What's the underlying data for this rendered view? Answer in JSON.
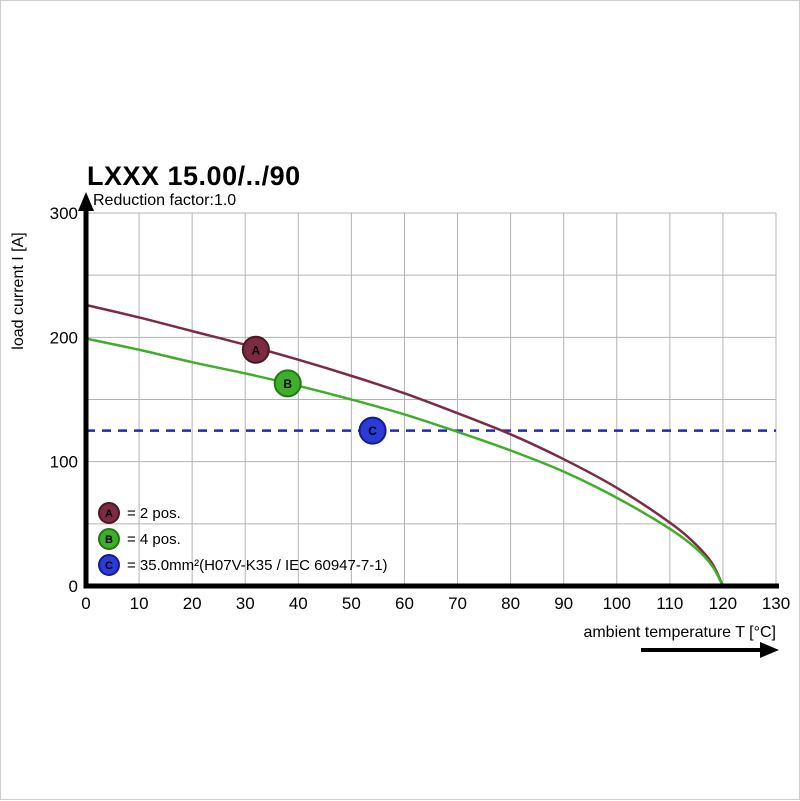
{
  "title": "LXXX 15.00/../90",
  "subtitle": "Reduction factor:1.0",
  "chart_data": {
    "type": "line",
    "title": "LXXX 15.00/../90",
    "subtitle": "Reduction factor:1.0",
    "xlabel": "ambient temperature T [°C]",
    "ylabel": "load current I [A]",
    "xlim": [
      0,
      130
    ],
    "ylim": [
      0,
      300
    ],
    "x_ticks": [
      0,
      10,
      20,
      30,
      40,
      50,
      60,
      70,
      80,
      90,
      100,
      110,
      120,
      130
    ],
    "y_ticks": [
      0,
      100,
      200,
      300
    ],
    "y_grid_step": 50,
    "grid": true,
    "grid_color": "#b3b3b3",
    "axis_color": "#000000",
    "series": [
      {
        "id": "A",
        "name": "2 pos.",
        "color": "#7d2b42",
        "marker_stroke": "#4a1724",
        "marker": {
          "x": 32,
          "y": 190
        },
        "points": [
          [
            0,
            226
          ],
          [
            10,
            216
          ],
          [
            20,
            205
          ],
          [
            30,
            194
          ],
          [
            40,
            182
          ],
          [
            50,
            169
          ],
          [
            60,
            155
          ],
          [
            70,
            139
          ],
          [
            80,
            122
          ],
          [
            90,
            102
          ],
          [
            100,
            79
          ],
          [
            110,
            51
          ],
          [
            115,
            33
          ],
          [
            118,
            18
          ],
          [
            120,
            0
          ]
        ]
      },
      {
        "id": "B",
        "name": "4 pos.",
        "color": "#3fae2a",
        "marker_stroke": "#1f7a12",
        "marker": {
          "x": 38,
          "y": 163
        },
        "points": [
          [
            0,
            199
          ],
          [
            10,
            190
          ],
          [
            20,
            180
          ],
          [
            30,
            171
          ],
          [
            40,
            161
          ],
          [
            50,
            150
          ],
          [
            60,
            138
          ],
          [
            70,
            124
          ],
          [
            80,
            109
          ],
          [
            90,
            92
          ],
          [
            100,
            71
          ],
          [
            110,
            46
          ],
          [
            115,
            30
          ],
          [
            118,
            16
          ],
          [
            120,
            0
          ]
        ]
      }
    ],
    "reference_line": {
      "id": "C",
      "value": 125,
      "color": "#2323cc",
      "style": "dashed",
      "label": "35.0mm²(H07V-K35 / IEC 60947-7-1)",
      "marker": {
        "x": 54,
        "y": 125
      },
      "marker_color": "#2a3bd6",
      "marker_stroke": "#141c8a"
    }
  },
  "legend": {
    "items": [
      {
        "letter": "A",
        "label": "= 2 pos.",
        "color": "#7d2b42",
        "stroke": "#4a1724"
      },
      {
        "letter": "B",
        "label": "= 4 pos.",
        "color": "#3fae2a",
        "stroke": "#1f7a12"
      },
      {
        "letter": "C",
        "label": "= 35.0mm²(H07V-K35 / IEC 60947-7-1)",
        "color": "#2a3bd6",
        "stroke": "#141c8a"
      }
    ]
  }
}
